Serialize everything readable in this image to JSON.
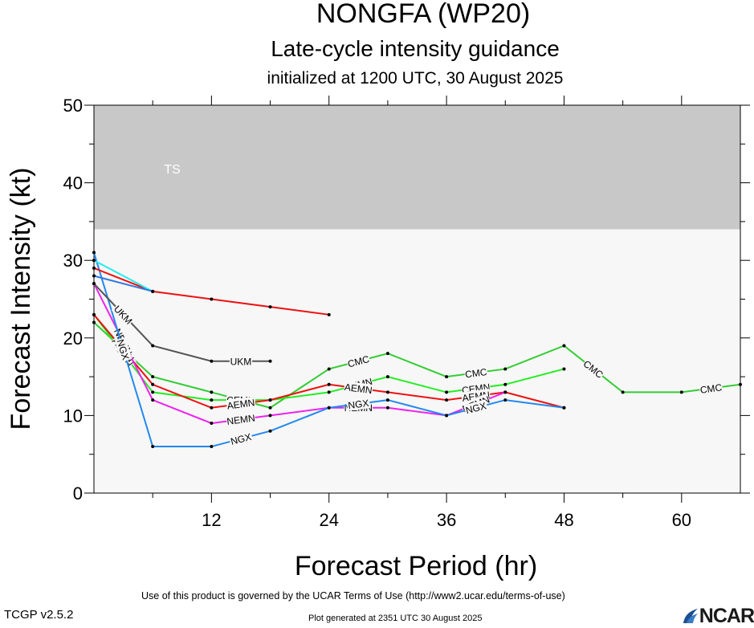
{
  "header": {
    "title": "NONGFA (WP20)",
    "subtitle": "Late-cycle intensity guidance",
    "initialized": "initialized at 1200 UTC, 30 August 2025"
  },
  "footer": {
    "terms": "Use of this product is governed by the UCAR Terms of Use (http://www2.ucar.edu/terms-of-use)",
    "generated": "Plot generated at 2351 UTC   30 August 2025",
    "version": "TCGP v2.5.2",
    "logo_text": "NCAR"
  },
  "chart_data": {
    "type": "line",
    "title": "NONGFA (WP20)",
    "xlabel": "Forecast Period (hr)",
    "ylabel": "Forecast Intensity (kt)",
    "xlim": [
      0,
      66
    ],
    "ylim": [
      0,
      50
    ],
    "xticks": [
      12,
      24,
      36,
      48,
      60
    ],
    "yticks": [
      0,
      10,
      20,
      30,
      40,
      50
    ],
    "bands": [
      {
        "label": "TS",
        "from": 34,
        "to": 50,
        "color": "#c8c8c8"
      },
      {
        "label": "",
        "from": 0,
        "to": 34,
        "color": "#f7f7f7"
      }
    ],
    "series": [
      {
        "name": "CMC",
        "color": "#33cc33",
        "x": [
          0,
          6,
          12,
          18,
          24,
          30,
          36,
          42,
          48,
          54,
          60,
          66
        ],
        "y": [
          22,
          15,
          13,
          11,
          16,
          18,
          15,
          16,
          19,
          13,
          13,
          14
        ]
      },
      {
        "name": "CEMN",
        "color": "#22ee22",
        "x": [
          0,
          6,
          12,
          18,
          24,
          30,
          36,
          42,
          48
        ],
        "y": [
          23,
          13,
          12,
          12,
          13,
          15,
          13,
          14,
          16
        ]
      },
      {
        "name": "AEMN",
        "color": "#ee1111",
        "x": [
          0,
          6,
          12,
          18,
          24,
          30,
          36,
          42,
          48
        ],
        "y": [
          23,
          14,
          11,
          12,
          14,
          13,
          12,
          13,
          11
        ]
      },
      {
        "name": "NEMN",
        "color": "#ee22ee",
        "x": [
          0,
          6,
          12,
          18,
          24,
          30,
          36,
          42
        ],
        "y": [
          27,
          12,
          9,
          10,
          11,
          11,
          10,
          13
        ]
      },
      {
        "name": "NGX",
        "color": "#2288ee",
        "x": [
          0,
          6,
          12,
          18,
          24,
          30,
          36,
          42,
          48
        ],
        "y": [
          31,
          6,
          6,
          8,
          11,
          12,
          10,
          12,
          11
        ]
      },
      {
        "name": "UKM",
        "color": "#555555",
        "x": [
          0,
          6,
          12,
          18
        ],
        "y": [
          27,
          19,
          17,
          17
        ]
      },
      {
        "name": "",
        "color": "#ee1111",
        "x": [
          0,
          6,
          12,
          18,
          24
        ],
        "y": [
          29,
          26,
          25,
          24,
          23
        ]
      },
      {
        "name": "",
        "color": "#22eeee",
        "x": [
          0,
          6
        ],
        "y": [
          30,
          26
        ]
      },
      {
        "name": "",
        "color": "#3377dd",
        "x": [
          0,
          6
        ],
        "y": [
          28,
          26
        ]
      }
    ]
  }
}
